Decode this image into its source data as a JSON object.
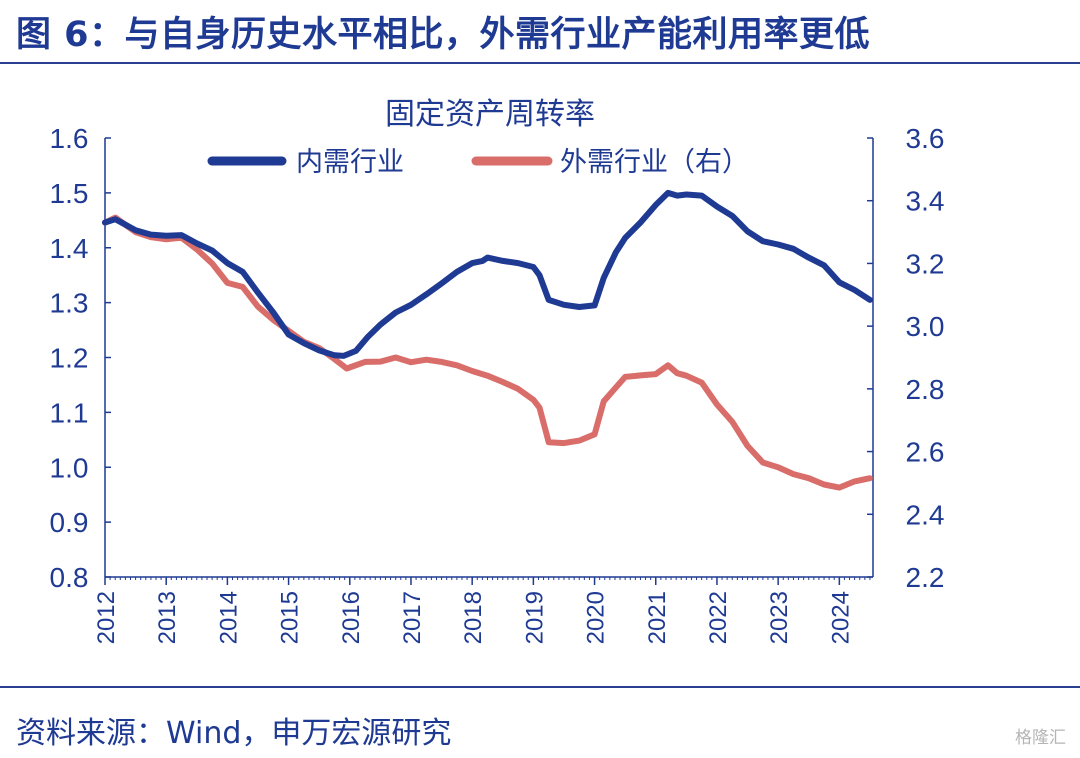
{
  "figure": {
    "title": "图 6：与自身历史水平相比，外需行业产能利用率更低",
    "source": "资料来源：Wind，申万宏源研究",
    "watermark": "格隆汇"
  },
  "chart_data": {
    "type": "line",
    "title": "固定资产周转率",
    "xlabel": "",
    "ylabel": "",
    "x_ticks": [
      "2012",
      "2013",
      "2014",
      "2015",
      "2016",
      "2017",
      "2018",
      "2019",
      "2020",
      "2021",
      "2022",
      "2023",
      "2024"
    ],
    "xlim": [
      2012.0,
      2024.55
    ],
    "ylim_left": [
      0.8,
      1.6
    ],
    "ylim_right": [
      2.2,
      3.6
    ],
    "y_ticks_left": [
      "0.8",
      "0.9",
      "1.0",
      "1.1",
      "1.2",
      "1.3",
      "1.4",
      "1.5",
      "1.6"
    ],
    "y_ticks_right": [
      "2.2",
      "2.4",
      "2.6",
      "2.8",
      "3.0",
      "3.2",
      "3.4",
      "3.6"
    ],
    "grid": false,
    "legend_position": "top-center",
    "series": [
      {
        "name": "内需行业",
        "axis": "left",
        "color": "#1f3a93",
        "points": [
          [
            2012.0,
            1.446
          ],
          [
            2012.17,
            1.452
          ],
          [
            2012.5,
            1.432
          ],
          [
            2012.75,
            1.424
          ],
          [
            2013.0,
            1.422
          ],
          [
            2013.25,
            1.423
          ],
          [
            2013.5,
            1.408
          ],
          [
            2013.75,
            1.395
          ],
          [
            2014.0,
            1.372
          ],
          [
            2014.25,
            1.356
          ],
          [
            2014.5,
            1.318
          ],
          [
            2014.75,
            1.282
          ],
          [
            2015.0,
            1.242
          ],
          [
            2015.25,
            1.226
          ],
          [
            2015.5,
            1.213
          ],
          [
            2015.75,
            1.204
          ],
          [
            2015.9,
            1.203
          ],
          [
            2016.1,
            1.212
          ],
          [
            2016.3,
            1.238
          ],
          [
            2016.5,
            1.26
          ],
          [
            2016.75,
            1.282
          ],
          [
            2017.0,
            1.296
          ],
          [
            2017.25,
            1.315
          ],
          [
            2017.5,
            1.335
          ],
          [
            2017.75,
            1.356
          ],
          [
            2018.0,
            1.372
          ],
          [
            2018.17,
            1.376
          ],
          [
            2018.25,
            1.382
          ],
          [
            2018.5,
            1.376
          ],
          [
            2018.75,
            1.372
          ],
          [
            2019.0,
            1.365
          ],
          [
            2019.1,
            1.35
          ],
          [
            2019.25,
            1.305
          ],
          [
            2019.5,
            1.296
          ],
          [
            2019.75,
            1.292
          ],
          [
            2020.0,
            1.295
          ],
          [
            2020.15,
            1.345
          ],
          [
            2020.35,
            1.392
          ],
          [
            2020.5,
            1.418
          ],
          [
            2020.75,
            1.446
          ],
          [
            2021.0,
            1.478
          ],
          [
            2021.2,
            1.5
          ],
          [
            2021.35,
            1.495
          ],
          [
            2021.5,
            1.497
          ],
          [
            2021.75,
            1.495
          ],
          [
            2022.0,
            1.475
          ],
          [
            2022.25,
            1.458
          ],
          [
            2022.5,
            1.43
          ],
          [
            2022.75,
            1.412
          ],
          [
            2023.0,
            1.406
          ],
          [
            2023.25,
            1.398
          ],
          [
            2023.5,
            1.382
          ],
          [
            2023.75,
            1.368
          ],
          [
            2024.0,
            1.337
          ],
          [
            2024.25,
            1.323
          ],
          [
            2024.5,
            1.305
          ]
        ]
      },
      {
        "name": "外需行业（右）",
        "axis": "right",
        "color": "#d96d6a",
        "points": [
          [
            2012.0,
            3.33
          ],
          [
            2012.17,
            3.346
          ],
          [
            2012.5,
            3.3
          ],
          [
            2012.75,
            3.284
          ],
          [
            2013.0,
            3.277
          ],
          [
            2013.25,
            3.282
          ],
          [
            2013.5,
            3.245
          ],
          [
            2013.75,
            3.2
          ],
          [
            2014.0,
            3.138
          ],
          [
            2014.25,
            3.125
          ],
          [
            2014.5,
            3.062
          ],
          [
            2014.75,
            3.02
          ],
          [
            2015.0,
            2.985
          ],
          [
            2015.25,
            2.95
          ],
          [
            2015.5,
            2.93
          ],
          [
            2015.75,
            2.895
          ],
          [
            2015.95,
            2.865
          ],
          [
            2016.25,
            2.886
          ],
          [
            2016.5,
            2.887
          ],
          [
            2016.75,
            2.9
          ],
          [
            2017.0,
            2.885
          ],
          [
            2017.25,
            2.893
          ],
          [
            2017.5,
            2.886
          ],
          [
            2017.75,
            2.875
          ],
          [
            2018.0,
            2.857
          ],
          [
            2018.25,
            2.842
          ],
          [
            2018.5,
            2.822
          ],
          [
            2018.75,
            2.8
          ],
          [
            2019.0,
            2.765
          ],
          [
            2019.1,
            2.74
          ],
          [
            2019.25,
            2.63
          ],
          [
            2019.5,
            2.627
          ],
          [
            2019.75,
            2.635
          ],
          [
            2020.0,
            2.655
          ],
          [
            2020.15,
            2.76
          ],
          [
            2020.35,
            2.805
          ],
          [
            2020.5,
            2.838
          ],
          [
            2020.75,
            2.843
          ],
          [
            2021.0,
            2.847
          ],
          [
            2021.2,
            2.875
          ],
          [
            2021.35,
            2.85
          ],
          [
            2021.5,
            2.842
          ],
          [
            2021.75,
            2.82
          ],
          [
            2022.0,
            2.75
          ],
          [
            2022.25,
            2.695
          ],
          [
            2022.5,
            2.618
          ],
          [
            2022.75,
            2.565
          ],
          [
            2023.0,
            2.55
          ],
          [
            2023.25,
            2.528
          ],
          [
            2023.5,
            2.515
          ],
          [
            2023.75,
            2.495
          ],
          [
            2024.0,
            2.485
          ],
          [
            2024.25,
            2.505
          ],
          [
            2024.5,
            2.515
          ]
        ]
      }
    ]
  }
}
